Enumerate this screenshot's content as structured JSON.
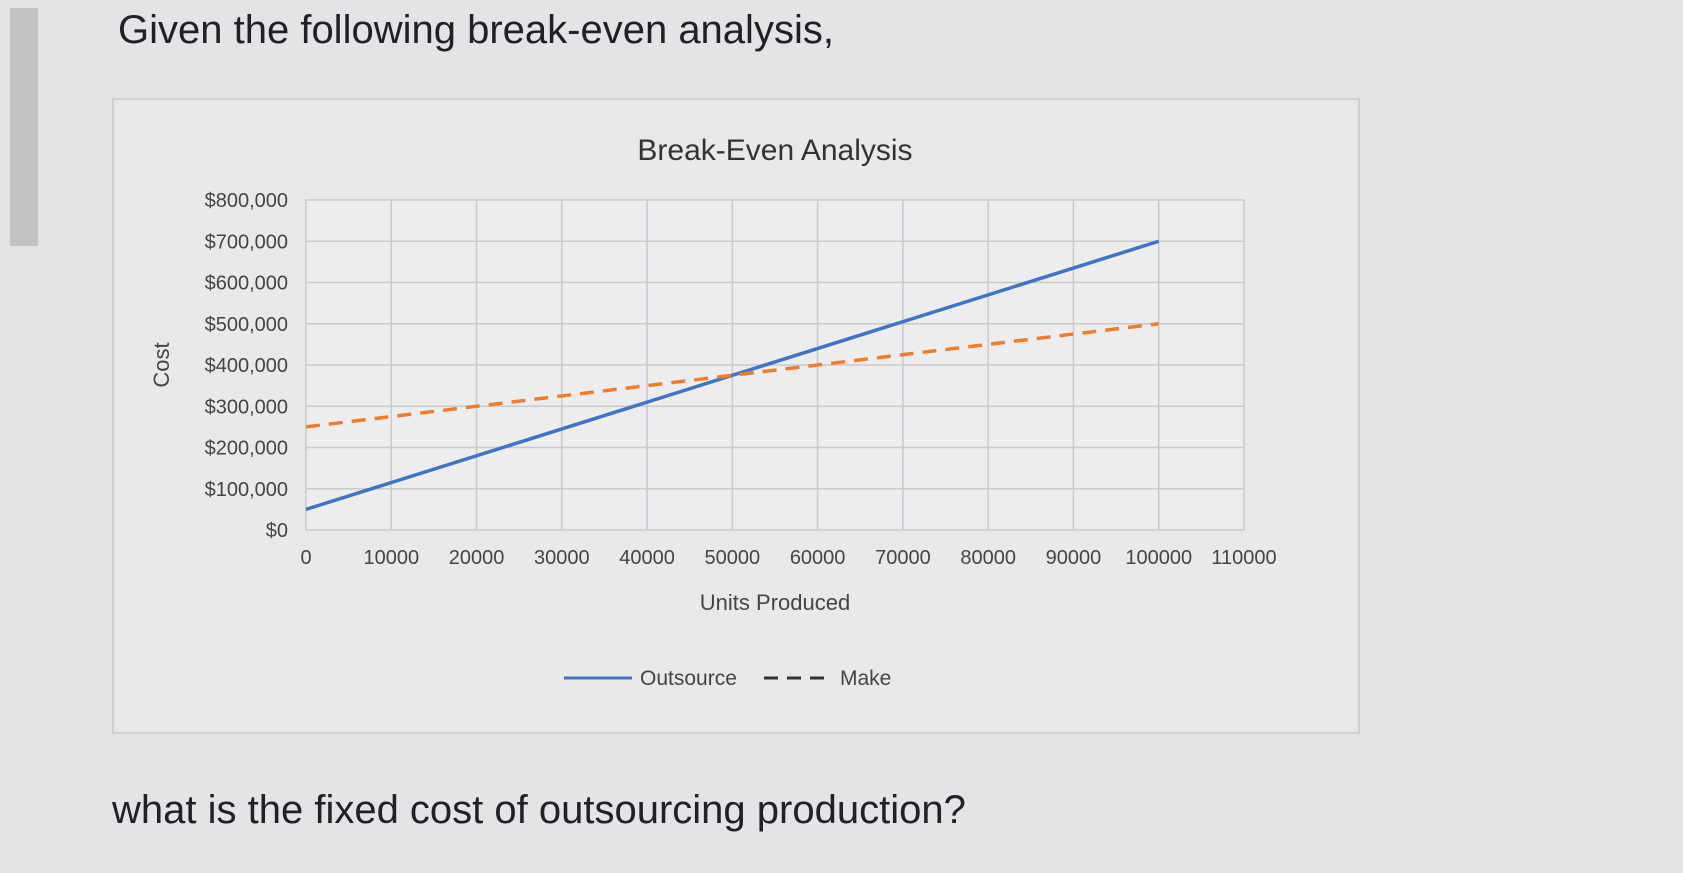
{
  "page": {
    "question_intro": "Given the following break-even analysis,",
    "question_prompt": "what is the fixed cost of outsourcing production?"
  },
  "chart_data": {
    "type": "line",
    "title": "Break-Even Analysis",
    "xlabel": "Units Produced",
    "ylabel": "Cost",
    "x_ticks": [
      0,
      10000,
      20000,
      30000,
      40000,
      50000,
      60000,
      70000,
      80000,
      90000,
      100000,
      110000
    ],
    "y_ticks": [
      "$0",
      "$100,000",
      "$200,000",
      "$300,000",
      "$400,000",
      "$500,000",
      "$600,000",
      "$700,000",
      "$800,000"
    ],
    "xlim": [
      0,
      110000
    ],
    "ylim": [
      0,
      800000
    ],
    "grid": true,
    "legend_position": "bottom",
    "series": [
      {
        "name": "Outsource",
        "style": "solid",
        "color": "#4472c4",
        "x": [
          0,
          100000
        ],
        "y": [
          50000,
          700000
        ]
      },
      {
        "name": "Make",
        "style": "dashed",
        "color": "#ed7d31",
        "x": [
          0,
          100000
        ],
        "y": [
          250000,
          500000
        ]
      }
    ]
  }
}
